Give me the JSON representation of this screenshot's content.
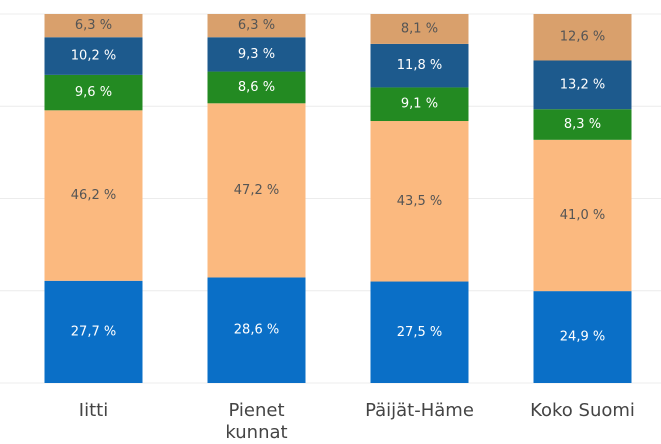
{
  "chart_data": {
    "type": "stacked_bar",
    "categories": [
      "Iitti",
      "Pienet kunnat",
      "Päijät-Häme",
      "Koko Suomi"
    ],
    "ylim": [
      0,
      100
    ],
    "yticks": [
      0,
      25,
      50,
      75,
      100
    ],
    "grid": true,
    "series": [
      {
        "color": "#0a6fc7",
        "label_color": "#ffffff",
        "values": [
          27.7,
          28.6,
          27.5,
          24.9
        ],
        "value_labels": [
          "27,7 %",
          "28,6 %",
          "27,5 %",
          "24,9 %"
        ]
      },
      {
        "color": "#fbb97f",
        "label_color": "#555555",
        "values": [
          46.2,
          47.2,
          43.5,
          41.0
        ],
        "value_labels": [
          "46,2 %",
          "47,2 %",
          "43,5 %",
          "41,0 %"
        ]
      },
      {
        "color": "#238a22",
        "label_color": "#ffffff",
        "values": [
          9.6,
          8.6,
          9.1,
          8.3
        ],
        "value_labels": [
          "9,6 %",
          "8,6 %",
          "9,1 %",
          "8,3 %"
        ]
      },
      {
        "color": "#1d5a8d",
        "label_color": "#ffffff",
        "values": [
          10.2,
          9.3,
          11.8,
          13.2
        ],
        "value_labels": [
          "10,2 %",
          "9,3 %",
          "11,8 %",
          "13,2 %"
        ]
      },
      {
        "color": "#d9a06c",
        "label_color": "#555555",
        "values": [
          6.3,
          6.3,
          8.1,
          12.6
        ],
        "value_labels": [
          "6,3 %",
          "6,3 %",
          "8,1 %",
          "12,6 %"
        ]
      }
    ]
  }
}
